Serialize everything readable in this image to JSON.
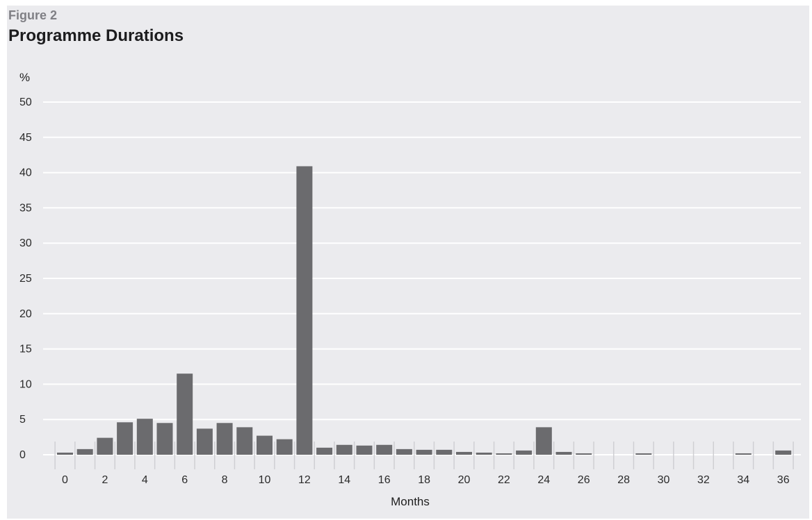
{
  "figure": {
    "label": "Figure 2",
    "title": "Programme Durations"
  },
  "chart_data": {
    "type": "bar",
    "title": "Programme Durations",
    "xlabel": "Months",
    "ylabel": "%",
    "ylim": [
      0,
      50
    ],
    "yticks": [
      0,
      5,
      10,
      15,
      20,
      25,
      30,
      35,
      40,
      45,
      50
    ],
    "xticks": [
      0,
      2,
      4,
      6,
      8,
      10,
      12,
      14,
      16,
      18,
      20,
      22,
      24,
      26,
      28,
      30,
      32,
      34,
      36
    ],
    "grid": true,
    "bar_color": "#6b6b6e",
    "categories": [
      0,
      1,
      2,
      3,
      4,
      5,
      6,
      7,
      8,
      9,
      10,
      11,
      12,
      13,
      14,
      15,
      16,
      17,
      18,
      19,
      20,
      21,
      22,
      23,
      24,
      25,
      26,
      27,
      28,
      29,
      30,
      31,
      32,
      33,
      34,
      35,
      36
    ],
    "values": [
      0.3,
      0.8,
      2.4,
      4.6,
      5.1,
      4.5,
      11.5,
      3.7,
      4.5,
      3.9,
      2.7,
      2.2,
      40.9,
      1.0,
      1.4,
      1.3,
      1.4,
      0.8,
      0.7,
      0.7,
      0.4,
      0.3,
      0.2,
      0.6,
      3.9,
      0.4,
      0.2,
      0,
      0,
      0.2,
      0,
      0,
      0,
      0,
      0.2,
      0,
      0.6
    ]
  }
}
